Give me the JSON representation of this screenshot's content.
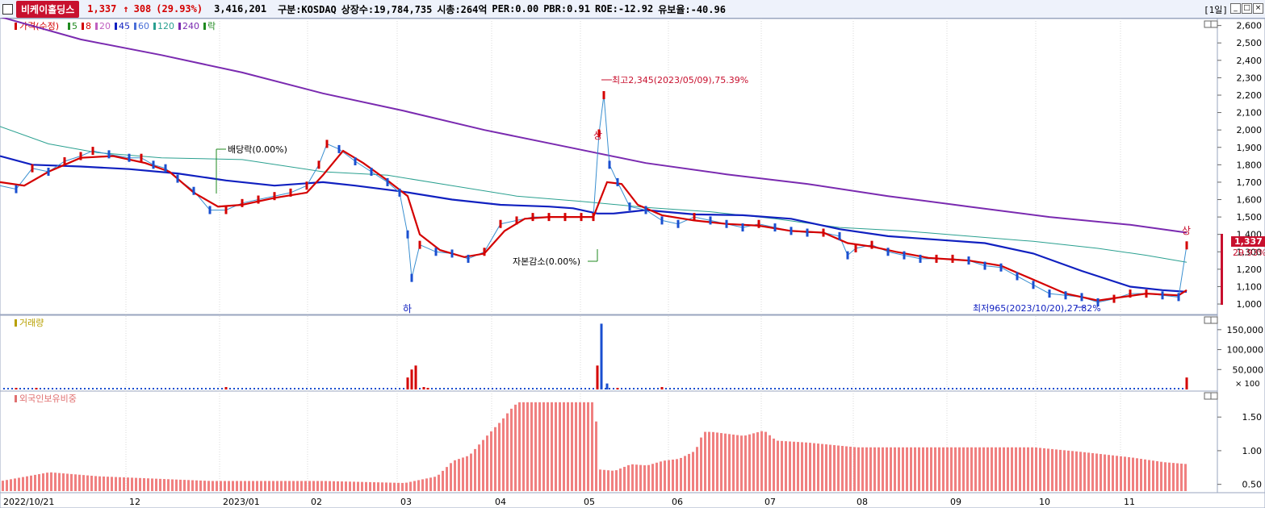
{
  "header": {
    "stock_name": "비케이홀딩스",
    "price": "1,337",
    "change_arrow": "↑",
    "change": "308",
    "change_pct": "(29.93%)",
    "volume": "3,416,201",
    "market": "구분:KOSDAQ",
    "listed_shares": "상장수:19,784,735",
    "market_cap": "시총:264억",
    "per": "PER:0.00",
    "pbr": "PBR:0.91",
    "roe": "ROE:-12.92",
    "reserve_ratio": "유보율:-40.96",
    "period": "[1일]"
  },
  "legend": {
    "price_label": "가격(수정)",
    "ma_items": [
      {
        "label": "5",
        "color": "#1f8a1f"
      },
      {
        "label": "8",
        "color": "#d40000"
      },
      {
        "label": "20",
        "color": "#c060c0"
      },
      {
        "label": "45",
        "color": "#1020c0"
      },
      {
        "label": "60",
        "color": "#4a6fd8"
      },
      {
        "label": "120",
        "color": "#2aa090"
      },
      {
        "label": "240",
        "color": "#7a2ab0"
      },
      {
        "label": "락",
        "color": "#1f8a1f"
      }
    ],
    "volume_label": "거래량",
    "foreign_label": "외국인보유비중"
  },
  "annotations": {
    "high": "최고2,345(2023/05/09),75.39%",
    "low": "최저965(2023/10/20),27.82%",
    "dividend": "배당락(0.00%)",
    "capital_reduction": "자본감소(0.00%)",
    "limit_down": "하",
    "limit_up_1": "상",
    "limit_up_2": "상",
    "last_price": "1,337",
    "last_change": "29.93%"
  },
  "axes": {
    "price_ticks": [
      "2,600",
      "2,500",
      "2,400",
      "2,300",
      "2,200",
      "2,100",
      "2,000",
      "1,900",
      "1,800",
      "1,700",
      "1,600",
      "1,500",
      "1,400",
      "1,300",
      "1,200",
      "1,100",
      "1,000"
    ],
    "volume_ticks": [
      "150,000",
      "100,000",
      "50,000"
    ],
    "volume_unit": "× 100",
    "foreign_ticks": [
      "1.50",
      "1.00",
      "0.50"
    ],
    "x_labels": [
      "2022/10/21",
      "12",
      "2023/01",
      "02",
      "03",
      "04",
      "05",
      "06",
      "07",
      "08",
      "09",
      "10",
      "11"
    ]
  },
  "chart_data": {
    "type": "line",
    "price_range": [
      940,
      2640
    ],
    "volume_range": [
      0,
      180000
    ],
    "foreign_range": [
      0.4,
      1.85
    ],
    "close_path": [
      [
        0,
        1680
      ],
      [
        20,
        1660
      ],
      [
        40,
        1780
      ],
      [
        60,
        1760
      ],
      [
        80,
        1820
      ],
      [
        100,
        1850
      ],
      [
        115,
        1880
      ],
      [
        135,
        1860
      ],
      [
        160,
        1840
      ],
      [
        175,
        1840
      ],
      [
        190,
        1800
      ],
      [
        205,
        1780
      ],
      [
        220,
        1720
      ],
      [
        240,
        1650
      ],
      [
        260,
        1540
      ],
      [
        280,
        1540
      ],
      [
        300,
        1580
      ],
      [
        320,
        1600
      ],
      [
        340,
        1620
      ],
      [
        360,
        1640
      ],
      [
        380,
        1680
      ],
      [
        395,
        1800
      ],
      [
        405,
        1920
      ],
      [
        420,
        1890
      ],
      [
        440,
        1820
      ],
      [
        460,
        1760
      ],
      [
        480,
        1700
      ],
      [
        495,
        1640
      ],
      [
        505,
        1400
      ],
      [
        510,
        1150
      ],
      [
        520,
        1340
      ],
      [
        540,
        1300
      ],
      [
        560,
        1290
      ],
      [
        580,
        1260
      ],
      [
        600,
        1300
      ],
      [
        620,
        1460
      ],
      [
        640,
        1480
      ],
      [
        660,
        1500
      ],
      [
        680,
        1500
      ],
      [
        700,
        1500
      ],
      [
        720,
        1500
      ],
      [
        735,
        1500
      ],
      [
        742,
        1980
      ],
      [
        748,
        2200
      ],
      [
        755,
        1800
      ],
      [
        765,
        1700
      ],
      [
        780,
        1560
      ],
      [
        800,
        1540
      ],
      [
        820,
        1480
      ],
      [
        840,
        1460
      ],
      [
        860,
        1500
      ],
      [
        880,
        1480
      ],
      [
        900,
        1460
      ],
      [
        920,
        1440
      ],
      [
        940,
        1460
      ],
      [
        960,
        1440
      ],
      [
        980,
        1420
      ],
      [
        1000,
        1410
      ],
      [
        1020,
        1410
      ],
      [
        1040,
        1390
      ],
      [
        1050,
        1280
      ],
      [
        1060,
        1320
      ],
      [
        1080,
        1340
      ],
      [
        1100,
        1300
      ],
      [
        1120,
        1280
      ],
      [
        1140,
        1260
      ],
      [
        1160,
        1260
      ],
      [
        1180,
        1260
      ],
      [
        1200,
        1250
      ],
      [
        1220,
        1220
      ],
      [
        1240,
        1210
      ],
      [
        1260,
        1160
      ],
      [
        1280,
        1110
      ],
      [
        1300,
        1060
      ],
      [
        1320,
        1050
      ],
      [
        1340,
        1040
      ],
      [
        1360,
        1010
      ],
      [
        1380,
        1030
      ],
      [
        1400,
        1060
      ],
      [
        1420,
        1060
      ],
      [
        1440,
        1050
      ],
      [
        1460,
        1040
      ],
      [
        1470,
        1337
      ]
    ],
    "ma8_path": [
      [
        0,
        1700
      ],
      [
        30,
        1680
      ],
      [
        60,
        1760
      ],
      [
        100,
        1840
      ],
      [
        140,
        1850
      ],
      [
        180,
        1810
      ],
      [
        210,
        1760
      ],
      [
        240,
        1640
      ],
      [
        270,
        1560
      ],
      [
        300,
        1570
      ],
      [
        340,
        1610
      ],
      [
        380,
        1640
      ],
      [
        400,
        1740
      ],
      [
        425,
        1880
      ],
      [
        450,
        1810
      ],
      [
        480,
        1710
      ],
      [
        505,
        1620
      ],
      [
        520,
        1400
      ],
      [
        545,
        1310
      ],
      [
        575,
        1270
      ],
      [
        600,
        1290
      ],
      [
        625,
        1420
      ],
      [
        650,
        1490
      ],
      [
        680,
        1500
      ],
      [
        720,
        1500
      ],
      [
        735,
        1500
      ],
      [
        752,
        1700
      ],
      [
        770,
        1690
      ],
      [
        790,
        1570
      ],
      [
        820,
        1510
      ],
      [
        860,
        1480
      ],
      [
        900,
        1460
      ],
      [
        940,
        1450
      ],
      [
        980,
        1420
      ],
      [
        1020,
        1410
      ],
      [
        1050,
        1350
      ],
      [
        1080,
        1330
      ],
      [
        1110,
        1300
      ],
      [
        1150,
        1265
      ],
      [
        1200,
        1250
      ],
      [
        1240,
        1220
      ],
      [
        1280,
        1140
      ],
      [
        1320,
        1060
      ],
      [
        1360,
        1020
      ],
      [
        1390,
        1040
      ],
      [
        1420,
        1060
      ],
      [
        1460,
        1050
      ],
      [
        1470,
        1080
      ]
    ],
    "ma45_path": [
      [
        0,
        1850
      ],
      [
        40,
        1800
      ],
      [
        100,
        1790
      ],
      [
        160,
        1775
      ],
      [
        220,
        1750
      ],
      [
        280,
        1710
      ],
      [
        340,
        1680
      ],
      [
        400,
        1700
      ],
      [
        440,
        1680
      ],
      [
        500,
        1645
      ],
      [
        560,
        1600
      ],
      [
        620,
        1570
      ],
      [
        680,
        1560
      ],
      [
        710,
        1550
      ],
      [
        740,
        1520
      ],
      [
        760,
        1520
      ],
      [
        800,
        1540
      ],
      [
        860,
        1515
      ],
      [
        920,
        1510
      ],
      [
        980,
        1490
      ],
      [
        1040,
        1430
      ],
      [
        1100,
        1390
      ],
      [
        1160,
        1370
      ],
      [
        1220,
        1350
      ],
      [
        1280,
        1290
      ],
      [
        1340,
        1190
      ],
      [
        1400,
        1100
      ],
      [
        1440,
        1080
      ],
      [
        1470,
        1070
      ]
    ],
    "ma120_path": [
      [
        0,
        2020
      ],
      [
        60,
        1920
      ],
      [
        120,
        1870
      ],
      [
        200,
        1840
      ],
      [
        300,
        1830
      ],
      [
        400,
        1760
      ],
      [
        480,
        1740
      ],
      [
        560,
        1680
      ],
      [
        640,
        1620
      ],
      [
        720,
        1590
      ],
      [
        800,
        1555
      ],
      [
        880,
        1530
      ],
      [
        960,
        1490
      ],
      [
        1040,
        1440
      ],
      [
        1120,
        1420
      ],
      [
        1200,
        1390
      ],
      [
        1280,
        1360
      ],
      [
        1360,
        1320
      ],
      [
        1420,
        1280
      ],
      [
        1470,
        1240
      ]
    ],
    "ma240_path": [
      [
        0,
        2650
      ],
      [
        100,
        2520
      ],
      [
        200,
        2430
      ],
      [
        300,
        2330
      ],
      [
        400,
        2210
      ],
      [
        500,
        2110
      ],
      [
        600,
        2000
      ],
      [
        700,
        1905
      ],
      [
        800,
        1810
      ],
      [
        900,
        1745
      ],
      [
        1000,
        1690
      ],
      [
        1100,
        1620
      ],
      [
        1200,
        1560
      ],
      [
        1300,
        1500
      ],
      [
        1400,
        1455
      ],
      [
        1470,
        1410
      ]
    ],
    "volume_spikes": [
      [
        20,
        4000
      ],
      [
        45,
        4000
      ],
      [
        280,
        6000
      ],
      [
        505,
        30000
      ],
      [
        510,
        50000
      ],
      [
        515,
        60000
      ],
      [
        525,
        6000
      ],
      [
        530,
        4000
      ],
      [
        740,
        60000
      ],
      [
        745,
        165000
      ],
      [
        752,
        15000
      ],
      [
        765,
        4000
      ],
      [
        820,
        6000
      ],
      [
        1470,
        30000
      ]
    ],
    "foreign_steps": [
      [
        0,
        0.55
      ],
      [
        60,
        0.68
      ],
      [
        120,
        0.62
      ],
      [
        200,
        0.58
      ],
      [
        260,
        0.55
      ],
      [
        330,
        0.55
      ],
      [
        400,
        0.55
      ],
      [
        500,
        0.52
      ],
      [
        540,
        0.62
      ],
      [
        560,
        0.85
      ],
      [
        580,
        0.93
      ],
      [
        600,
        1.2
      ],
      [
        620,
        1.45
      ],
      [
        630,
        1.6
      ],
      [
        640,
        1.72
      ],
      [
        735,
        1.72
      ],
      [
        742,
        0.72
      ],
      [
        760,
        0.7
      ],
      [
        780,
        0.8
      ],
      [
        800,
        0.78
      ],
      [
        820,
        0.85
      ],
      [
        840,
        0.88
      ],
      [
        860,
        1.0
      ],
      [
        870,
        1.28
      ],
      [
        880,
        1.28
      ],
      [
        900,
        1.25
      ],
      [
        920,
        1.22
      ],
      [
        945,
        1.3
      ],
      [
        960,
        1.15
      ],
      [
        1000,
        1.12
      ],
      [
        1060,
        1.05
      ],
      [
        1100,
        1.05
      ],
      [
        1200,
        1.05
      ],
      [
        1280,
        1.05
      ],
      [
        1340,
        0.98
      ],
      [
        1400,
        0.9
      ],
      [
        1440,
        0.83
      ],
      [
        1470,
        0.8
      ]
    ]
  }
}
